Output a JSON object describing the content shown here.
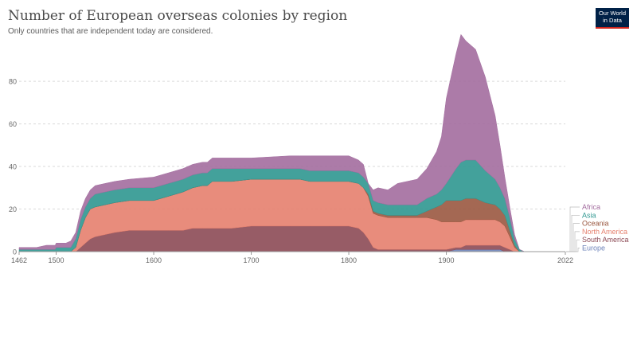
{
  "header": {
    "title": "Number of European overseas colonies by region",
    "subtitle": "Only countries that are independent today are considered.",
    "logo_line1": "Our World",
    "logo_line2": "in Data"
  },
  "chart_data": {
    "type": "area",
    "stacked": true,
    "xlim": [
      1462,
      2022
    ],
    "ylim": [
      0,
      95
    ],
    "x_ticks": [
      1462,
      1500,
      1600,
      1700,
      1800,
      1900,
      2022
    ],
    "y_ticks": [
      0,
      20,
      40,
      60,
      80
    ],
    "grid": "horizontal dotted",
    "legend_placement": "right",
    "x": [
      1462,
      1480,
      1490,
      1499,
      1500,
      1510,
      1515,
      1520,
      1525,
      1530,
      1535,
      1540,
      1550,
      1560,
      1575,
      1600,
      1615,
      1630,
      1640,
      1650,
      1655,
      1660,
      1680,
      1700,
      1740,
      1750,
      1760,
      1780,
      1800,
      1810,
      1815,
      1820,
      1825,
      1830,
      1840,
      1850,
      1870,
      1880,
      1890,
      1895,
      1900,
      1910,
      1915,
      1920,
      1930,
      1940,
      1950,
      1955,
      1960,
      1965,
      1970,
      1975,
      1980,
      2022
    ],
    "series": [
      {
        "name": "Europe",
        "color": "#6d83b9",
        "values": [
          0,
          0,
          0,
          0,
          0,
          0,
          0,
          0,
          0,
          0,
          0,
          0,
          0,
          0,
          0,
          0,
          0,
          0,
          0,
          0,
          0,
          0,
          0,
          0,
          0,
          0,
          0,
          0,
          0,
          0,
          0,
          0,
          0,
          0,
          0,
          0,
          0,
          0,
          0,
          0,
          0,
          1,
          1,
          1,
          1,
          1,
          1,
          1,
          0,
          0,
          0,
          0,
          0,
          0
        ]
      },
      {
        "name": "South America",
        "color": "#8c4a55",
        "values": [
          0,
          0,
          0,
          0,
          0,
          0,
          0,
          0,
          2,
          4,
          6,
          7,
          8,
          9,
          10,
          10,
          10,
          10,
          11,
          11,
          11,
          11,
          11,
          12,
          12,
          12,
          12,
          12,
          12,
          11,
          9,
          6,
          2,
          1,
          1,
          1,
          1,
          1,
          1,
          1,
          1,
          1,
          1,
          2,
          2,
          2,
          2,
          2,
          2,
          1,
          0,
          0,
          0,
          0
        ]
      },
      {
        "name": "North America",
        "color": "#e5806e",
        "values": [
          0,
          0,
          0,
          0,
          0,
          0,
          0,
          2,
          8,
          12,
          14,
          14,
          14,
          14,
          14,
          14,
          16,
          18,
          19,
          20,
          20,
          22,
          22,
          22,
          22,
          22,
          21,
          21,
          21,
          21,
          21,
          20,
          16,
          16,
          15,
          15,
          15,
          15,
          14,
          13,
          13,
          12,
          12,
          12,
          12,
          12,
          12,
          11,
          10,
          6,
          2,
          0,
          0,
          0
        ]
      },
      {
        "name": "Oceania",
        "color": "#9a5840",
        "values": [
          0,
          0,
          0,
          0,
          0,
          0,
          0,
          0,
          0,
          0,
          0,
          0,
          0,
          0,
          0,
          0,
          0,
          0,
          0,
          0,
          0,
          0,
          0,
          0,
          0,
          0,
          0,
          0,
          0,
          0,
          0,
          1,
          1,
          1,
          1,
          1,
          1,
          3,
          6,
          8,
          10,
          10,
          10,
          10,
          10,
          8,
          7,
          6,
          5,
          3,
          1,
          0,
          0,
          0
        ]
      },
      {
        "name": "Asia",
        "color": "#2f9790",
        "values": [
          1,
          1,
          1,
          1,
          2,
          2,
          2,
          4,
          5,
          5,
          5,
          6,
          6,
          6,
          6,
          6,
          6,
          6,
          6,
          6,
          6,
          6,
          6,
          5,
          5,
          5,
          5,
          5,
          5,
          5,
          5,
          5,
          5,
          5,
          5,
          5,
          5,
          6,
          6,
          7,
          8,
          15,
          18,
          18,
          18,
          15,
          12,
          10,
          8,
          6,
          3,
          1,
          0,
          0
        ]
      },
      {
        "name": "Africa",
        "color": "#a36d9f",
        "values": [
          1,
          1,
          2,
          2,
          2,
          2,
          3,
          3,
          4,
          4,
          4,
          4,
          4,
          4,
          4,
          5,
          5,
          5,
          5,
          5,
          5,
          5,
          5,
          5,
          6,
          6,
          7,
          7,
          7,
          6,
          6,
          0,
          5,
          7,
          7,
          10,
          12,
          14,
          20,
          25,
          40,
          54,
          60,
          56,
          52,
          44,
          30,
          20,
          10,
          5,
          2,
          0,
          0,
          0
        ]
      }
    ]
  }
}
